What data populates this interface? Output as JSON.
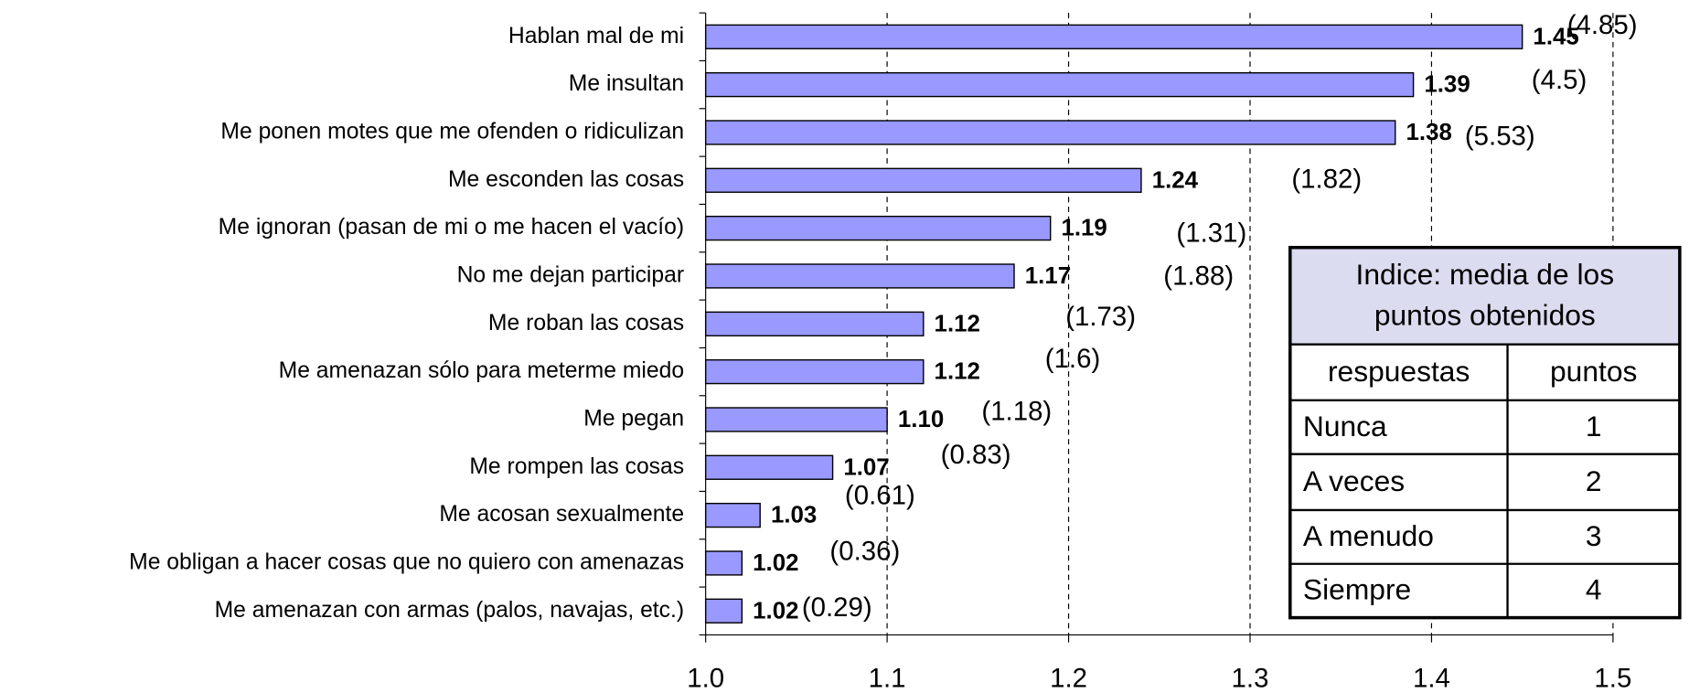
{
  "chart_data": {
    "type": "bar",
    "orientation": "horizontal",
    "categories": [
      "Hablan mal de mi",
      "Me insultan",
      "Me ponen motes que me ofenden o ridiculizan",
      "Me esconden las cosas",
      "Me ignoran (pasan de mi o me hacen el vacío)",
      "No me dejan participar",
      "Me roban las cosas",
      "Me amenazan sólo para meterme miedo",
      "Me pegan",
      "Me rompen las cosas",
      "Me acosan sexualmente",
      "Me obligan a hacer cosas que no quiero con amenazas",
      "Me amenazan con armas (palos, navajas, etc.)"
    ],
    "values": [
      1.45,
      1.39,
      1.38,
      1.24,
      1.19,
      1.17,
      1.12,
      1.12,
      1.1,
      1.07,
      1.03,
      1.02,
      1.02
    ],
    "value_labels": [
      "1.45",
      "1.39",
      "1.38",
      "1.24",
      "1.19",
      "1.17",
      "1.12",
      "1.12",
      "1.10",
      "1.07",
      "1.03",
      "1.02",
      "1.02"
    ],
    "annotations": [
      "(4.85)",
      "(4.5)",
      "(5.53)",
      "(1.82)",
      "(1.31)",
      "(1.88)",
      "(1.73)",
      "(1.6)",
      "(1.18)",
      "(0.83)",
      "(0.61)",
      "(0.36)",
      "(0.29)"
    ],
    "color": "#9999ff",
    "xlim": [
      1.0,
      1.5
    ],
    "xticks": [
      {
        "value": 1.0,
        "label": "1.0"
      },
      1.1,
      1.2,
      1.3,
      1.4,
      1.5
    ],
    "grid": true
  },
  "legend_table": {
    "title_lines": [
      "Indice: media de los",
      "puntos obtenidos"
    ],
    "header": [
      "respuestas",
      "puntos"
    ],
    "rows": [
      [
        "Nunca",
        "1"
      ],
      [
        "A veces",
        "2"
      ],
      [
        "A menudo",
        "3"
      ],
      [
        "Siempre",
        "4"
      ]
    ]
  }
}
